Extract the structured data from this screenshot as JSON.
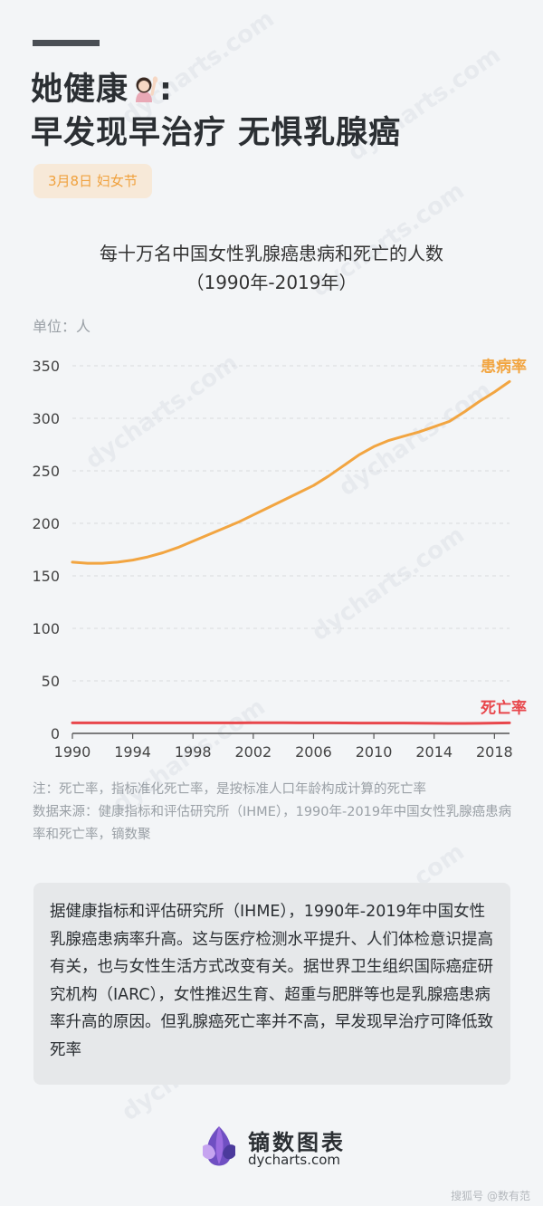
{
  "header": {
    "title_line1": "她健康",
    "title_colon": ":",
    "title_line2": "早发现早治疗  无惧乳腺癌",
    "emoji_icon": "woman-raising-hand-emoji",
    "tag": "3月8日 妇女节"
  },
  "chart_title_line1": "每十万名中国女性乳腺癌患病和死亡的人数",
  "chart_title_line2": "（1990年-2019年）",
  "unit": "单位：人",
  "colors": {
    "incidence": "#f2a541",
    "mortality": "#e8474c",
    "grid": "#d8dbde",
    "axis": "#555555"
  },
  "chart_data": {
    "type": "line",
    "title": "每十万名中国女性乳腺癌患病和死亡的人数（1990年-2019年）",
    "ylabel": "单位：人",
    "xlim": [
      1990,
      2019
    ],
    "ylim": [
      0,
      350
    ],
    "x_ticks": [
      1990,
      1994,
      1998,
      2002,
      2006,
      2010,
      2014,
      2018
    ],
    "y_ticks": [
      0,
      50,
      100,
      150,
      200,
      250,
      300,
      350
    ],
    "grid": "horizontal dashed",
    "x": [
      1990,
      1991,
      1992,
      1993,
      1994,
      1995,
      1996,
      1997,
      1998,
      1999,
      2000,
      2001,
      2002,
      2003,
      2004,
      2005,
      2006,
      2007,
      2008,
      2009,
      2010,
      2011,
      2012,
      2013,
      2014,
      2015,
      2016,
      2017,
      2018,
      2019
    ],
    "series": [
      {
        "name": "患病率",
        "values": [
          163,
          162,
          162,
          163,
          165,
          168,
          172,
          177,
          183,
          189,
          195,
          201,
          208,
          215,
          222,
          229,
          236,
          245,
          255,
          265,
          273,
          279,
          283,
          287,
          292,
          297,
          306,
          316,
          325,
          335
        ]
      },
      {
        "name": "死亡率",
        "values": [
          10,
          10,
          10,
          10,
          10,
          10,
          10,
          10,
          10,
          10,
          10,
          10,
          10.2,
          10.2,
          10.1,
          10,
          10,
          10,
          9.9,
          9.8,
          9.8,
          9.8,
          9.8,
          9.7,
          9.6,
          9.5,
          9.5,
          9.6,
          9.8,
          10
        ]
      }
    ]
  },
  "notes": {
    "note1": "注：死亡率，指标准化死亡率，是按标准人口年龄构成计算的死亡率",
    "note2": "数据来源：健康指标和评估研究所（IHME），1990年-2019年中国女性乳腺癌患病率和死亡率，镝数聚"
  },
  "body_text": "据健康指标和评估研究所（IHME），1990年-2019年中国女性乳腺癌患病率升高。这与医疗检测水平提升、人们体检意识提高有关，也与女性生活方式改变有关。据世界卫生组织国际癌症研究机构（IARC），女性推迟生育、超重与肥胖等也是乳腺癌患病率升高的原因。但乳腺癌死亡率并不高，早发现早治疗可降低致死率",
  "logo": {
    "icon": "dycharts-logo-icon",
    "name": "镝数图表",
    "url": "dycharts.com"
  },
  "footer": "搜狐号 @数有范",
  "watermark": "dycharts.com"
}
